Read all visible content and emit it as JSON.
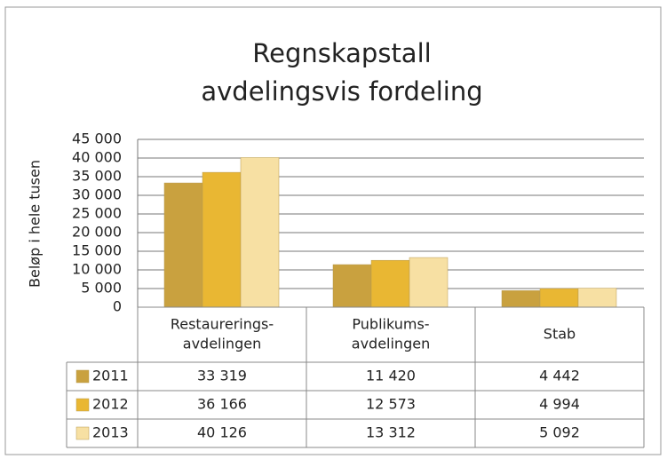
{
  "chart_data": {
    "type": "bar",
    "title": [
      "Regnskapstall",
      "avdelingsvis fordeling"
    ],
    "y_label": "Beløp  i hele tusen",
    "categories": [
      [
        "Restaurerings-",
        "avdelingen"
      ],
      [
        "Publikums-",
        "avdelingen"
      ],
      [
        "Stab"
      ]
    ],
    "series": [
      {
        "name": "2011",
        "color": "#c9a13f",
        "values": [
          33319,
          11420,
          4442
        ],
        "value_labels": [
          "33 319",
          "11 420",
          "4 442"
        ]
      },
      {
        "name": "2012",
        "color": "#e9b733",
        "values": [
          36166,
          12573,
          4994
        ],
        "value_labels": [
          "36 166",
          "12 573",
          "4 994"
        ]
      },
      {
        "name": "2013",
        "color": "#f7e0a3",
        "values": [
          40126,
          13312,
          5092
        ],
        "value_labels": [
          "40 126",
          "13 312",
          "5 092"
        ]
      }
    ],
    "ylim": [
      0,
      45000
    ],
    "yticks": [
      0,
      {
        "value": 5000,
        "label": "5 000"
      },
      {
        "value": 10000,
        "label": "10 000"
      },
      {
        "value": 15000,
        "label": "15 000"
      },
      {
        "value": 20000,
        "label": "20 000"
      },
      {
        "value": 25000,
        "label": "25 000"
      },
      {
        "value": 30000,
        "label": "30 000"
      },
      {
        "value": 35000,
        "label": "35 000"
      },
      {
        "value": 40000,
        "label": "40 000"
      },
      {
        "value": 45000,
        "label": "45 000"
      }
    ],
    "grid": true
  }
}
